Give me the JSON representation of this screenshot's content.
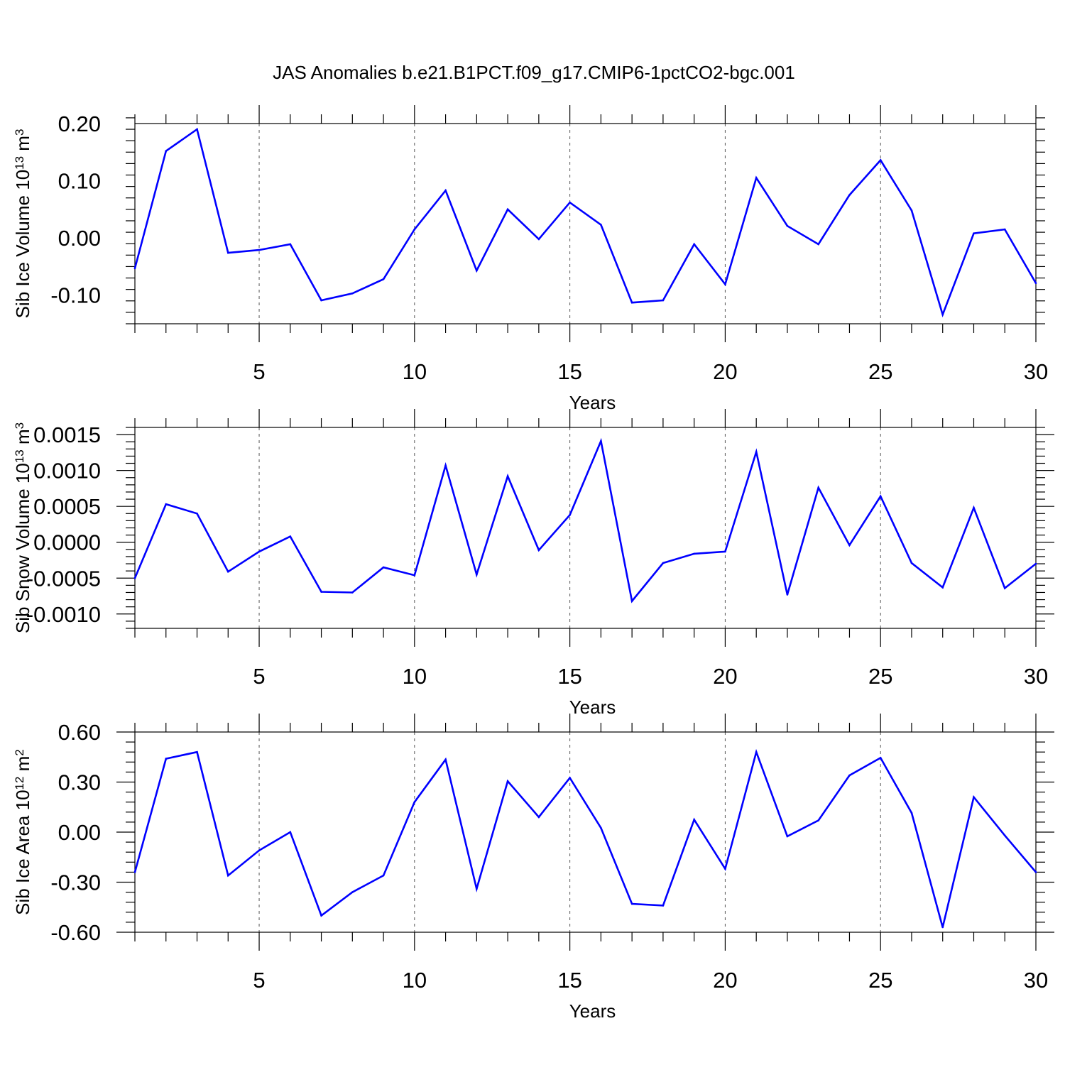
{
  "title": "JAS Anomalies b.e21.B1PCT.f09_g17.CMIP6-1pctCO2-bgc.001",
  "chart_data": [
    {
      "type": "line",
      "ylabel": "Sib Ice Volume 10",
      "ylabel_exp": "13",
      "ylabel_unit": " m",
      "ylabel_unit_exp": "3",
      "xlabel": "Years",
      "xlim": [
        1,
        30
      ],
      "ylim": [
        -0.15,
        0.2
      ],
      "x_ticks": [
        5,
        10,
        15,
        20,
        25,
        30
      ],
      "x_tick_labels": [
        "5",
        "10",
        "15",
        "20",
        "25",
        "30"
      ],
      "y_ticks": [
        0.2,
        0.1,
        0.0,
        -0.1
      ],
      "y_tick_labels": [
        "0.20",
        "0.10",
        "0.00",
        "-0.10"
      ],
      "y_minor_step": 0.02,
      "grid": "dashed vertical at x ticks",
      "color": "#0000ff",
      "x": [
        1,
        2,
        3,
        4,
        5,
        6,
        7,
        8,
        9,
        10,
        11,
        12,
        13,
        14,
        15,
        16,
        17,
        18,
        19,
        20,
        21,
        22,
        23,
        24,
        25,
        26,
        27,
        28,
        29,
        30
      ],
      "values": [
        -0.053,
        0.152,
        0.19,
        -0.026,
        -0.021,
        -0.011,
        -0.109,
        -0.097,
        -0.072,
        0.015,
        0.083,
        -0.057,
        0.05,
        -0.002,
        0.062,
        0.023,
        -0.113,
        -0.109,
        -0.011,
        -0.081,
        0.105,
        0.021,
        -0.011,
        0.075,
        0.136,
        0.048,
        -0.134,
        0.008,
        0.015,
        -0.079
      ]
    },
    {
      "type": "line",
      "ylabel": "Sib Snow Volume 10",
      "ylabel_exp": "13",
      "ylabel_unit": " m",
      "ylabel_unit_exp": "3",
      "xlabel": "Years",
      "xlim": [
        1,
        30
      ],
      "ylim": [
        -0.0012,
        0.0016
      ],
      "x_ticks": [
        5,
        10,
        15,
        20,
        25,
        30
      ],
      "x_tick_labels": [
        "5",
        "10",
        "15",
        "20",
        "25",
        "30"
      ],
      "y_ticks": [
        0.0015,
        0.001,
        0.0005,
        0.0,
        -0.0005,
        -0.001
      ],
      "y_tick_labels": [
        "0.0015",
        "0.0010",
        "0.0005",
        "0.0000",
        "-0.0005",
        "-0.0010"
      ],
      "y_minor_step": 0.0001,
      "grid": "dashed vertical at x ticks",
      "color": "#0000ff",
      "x": [
        1,
        2,
        3,
        4,
        5,
        6,
        7,
        8,
        9,
        10,
        11,
        12,
        13,
        14,
        15,
        16,
        17,
        18,
        19,
        20,
        21,
        22,
        23,
        24,
        25,
        26,
        27,
        28,
        29,
        30
      ],
      "values": [
        -0.0005,
        0.00053,
        0.0004,
        -0.00041,
        -0.00013,
        8e-05,
        -0.00069,
        -0.0007,
        -0.00035,
        -0.00046,
        0.00107,
        -0.00045,
        0.00092,
        -0.00011,
        0.00038,
        0.00141,
        -0.00082,
        -0.00029,
        -0.00016,
        -0.00013,
        0.00126,
        -0.00073,
        0.00076,
        -4e-05,
        0.00064,
        -0.00029,
        -0.00063,
        0.00048,
        -0.00064,
        -0.0003
      ]
    },
    {
      "type": "line",
      "ylabel": "Sib Ice Area 10",
      "ylabel_exp": "12",
      "ylabel_unit": " m",
      "ylabel_unit_exp": "2",
      "xlabel": "Years",
      "xlim": [
        1,
        30
      ],
      "ylim": [
        -0.6,
        0.6
      ],
      "x_ticks": [
        5,
        10,
        15,
        20,
        25,
        30
      ],
      "x_tick_labels": [
        "5",
        "10",
        "15",
        "20",
        "25",
        "30"
      ],
      "y_ticks": [
        0.6,
        0.3,
        0.0,
        -0.3,
        -0.6
      ],
      "y_tick_labels": [
        "0.60",
        "0.30",
        "0.00",
        "-0.30",
        "-0.60"
      ],
      "y_minor_step": 0.06,
      "grid": "dashed vertical at x ticks",
      "color": "#0000ff",
      "x": [
        1,
        2,
        3,
        4,
        5,
        6,
        7,
        8,
        9,
        10,
        11,
        12,
        13,
        14,
        15,
        16,
        17,
        18,
        19,
        20,
        21,
        22,
        23,
        24,
        25,
        26,
        27,
        28,
        29,
        30
      ],
      "values": [
        -0.24,
        0.44,
        0.48,
        -0.26,
        -0.11,
        0.0,
        -0.5,
        -0.36,
        -0.26,
        0.18,
        0.435,
        -0.34,
        0.305,
        0.09,
        0.325,
        0.025,
        -0.43,
        -0.44,
        0.075,
        -0.22,
        0.48,
        -0.025,
        0.07,
        0.34,
        0.445,
        0.115,
        -0.57,
        0.21,
        -0.02,
        -0.24
      ]
    }
  ]
}
